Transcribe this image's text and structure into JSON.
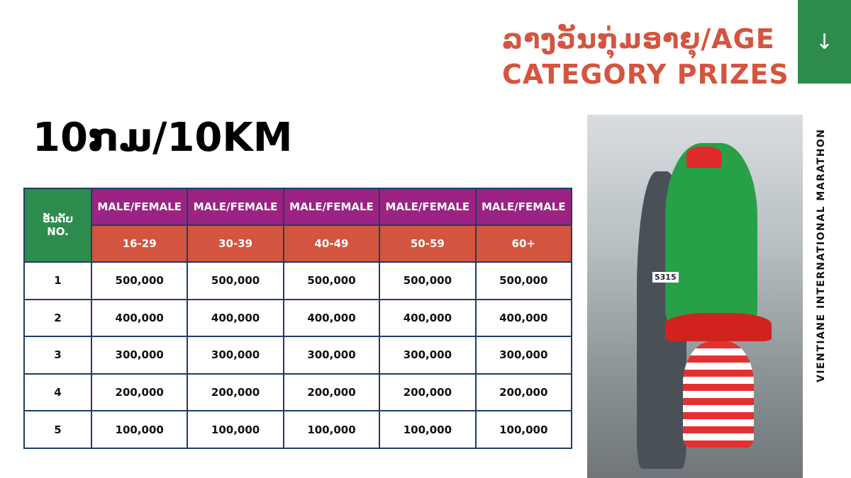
{
  "header": {
    "title_line1": "ລາງວັນກຸ່ມອາຍຸ/AGE",
    "title_line2": "CATEGORY PRIZES",
    "nav_icon": "arrow-down-icon",
    "nav_glyph": "↓"
  },
  "distance": "10ກມ/10KM",
  "table": {
    "rank_header_lao": "ອັນດັບ",
    "rank_header": "NO.",
    "group_label": "MALE/FEMALE",
    "age_groups": [
      "16-29",
      "30-39",
      "40-49",
      "50-59",
      "60+"
    ],
    "rows": [
      {
        "rank": "1",
        "prizes": [
          "500,000",
          "500,000",
          "500,000",
          "500,000",
          "500,000"
        ]
      },
      {
        "rank": "2",
        "prizes": [
          "400,000",
          "400,000",
          "400,000",
          "400,000",
          "400,000"
        ]
      },
      {
        "rank": "3",
        "prizes": [
          "300,000",
          "300,000",
          "300,000",
          "300,000",
          "300,000"
        ]
      },
      {
        "rank": "4",
        "prizes": [
          "200,000",
          "200,000",
          "200,000",
          "200,000",
          "200,000"
        ]
      },
      {
        "rank": "5",
        "prizes": [
          "100,000",
          "100,000",
          "100,000",
          "100,000",
          "100,000"
        ]
      }
    ]
  },
  "side_text": "VIENTIANE INTERNATIONAL MARATHON",
  "photo_number": "5315",
  "colors": {
    "accent": "#d4553f",
    "green": "#2e8b4e",
    "purple": "#9b2383",
    "border": "#1f3d63"
  }
}
